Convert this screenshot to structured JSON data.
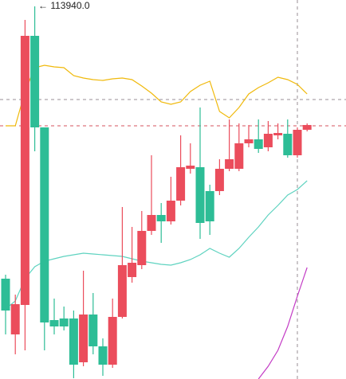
{
  "chart_data": {
    "type": "candlestick",
    "annotation": "← 113940.0",
    "ylim": [
      111600,
      113980
    ],
    "up_color": "#eb4d5c",
    "down_color": "#2dbd96",
    "open": [
      112230,
      111880,
      112065,
      113755,
      113180,
      111970,
      111980,
      111980,
      111705,
      112005,
      111805,
      111690,
      111990,
      112240,
      112315,
      112530,
      112630,
      112590,
      112720,
      112920,
      112930,
      112780,
      112780,
      112920,
      112920,
      113080,
      113105,
      113055,
      113130,
      113140,
      113005,
      113165
    ],
    "high": [
      112255,
      112130,
      113855,
      113940,
      113180,
      112105,
      112055,
      112030,
      112280,
      112140,
      111855,
      112105,
      112680,
      112555,
      112655,
      113005,
      112705,
      112870,
      113130,
      113080,
      113305,
      112820,
      112980,
      113230,
      113205,
      113195,
      113230,
      113220,
      113205,
      113230,
      113180,
      113205
    ],
    "low": [
      111880,
      111755,
      111780,
      113030,
      111780,
      111880,
      111905,
      111605,
      111680,
      111755,
      111620,
      111670,
      111980,
      112205,
      112290,
      112505,
      112455,
      112570,
      112690,
      112890,
      112480,
      112505,
      112755,
      112905,
      112905,
      113055,
      113020,
      113030,
      113105,
      112990,
      112990,
      113155
    ],
    "close": [
      112030,
      112070,
      113755,
      113180,
      111955,
      111930,
      111930,
      111690,
      112005,
      111805,
      111690,
      111990,
      112315,
      112330,
      112530,
      112630,
      112590,
      112720,
      112930,
      112940,
      112580,
      112590,
      112920,
      112980,
      113080,
      113105,
      113045,
      113140,
      113145,
      113005,
      113165,
      113195
    ],
    "lines": [
      {
        "color": "#f0b90b",
        "values": [
          113190,
          113190,
          113405,
          113555,
          113570,
          113560,
          113555,
          113505,
          113490,
          113480,
          113475,
          113485,
          113490,
          113480,
          113440,
          113395,
          113340,
          113325,
          113340,
          113405,
          113445,
          113470,
          113280,
          113240,
          113305,
          113390,
          113430,
          113460,
          113495,
          113480,
          113450,
          113390
        ]
      },
      {
        "color": "#5fd3c0",
        "values": [
          112040,
          112090,
          112230,
          112305,
          112340,
          112355,
          112370,
          112380,
          112390,
          112385,
          112380,
          112375,
          112370,
          112355,
          112340,
          112330,
          112320,
          112315,
          112330,
          112350,
          112380,
          112420,
          112390,
          112365,
          112420,
          112490,
          112555,
          112630,
          112690,
          112755,
          112790,
          112845
        ]
      },
      {
        "color": "#c33bc5",
        "values": [
          null,
          null,
          null,
          null,
          null,
          null,
          null,
          null,
          null,
          null,
          null,
          null,
          null,
          null,
          null,
          null,
          null,
          null,
          null,
          null,
          null,
          null,
          null,
          null,
          null,
          null,
          111600,
          111680,
          111780,
          111930,
          112120,
          112300
        ]
      }
    ]
  }
}
